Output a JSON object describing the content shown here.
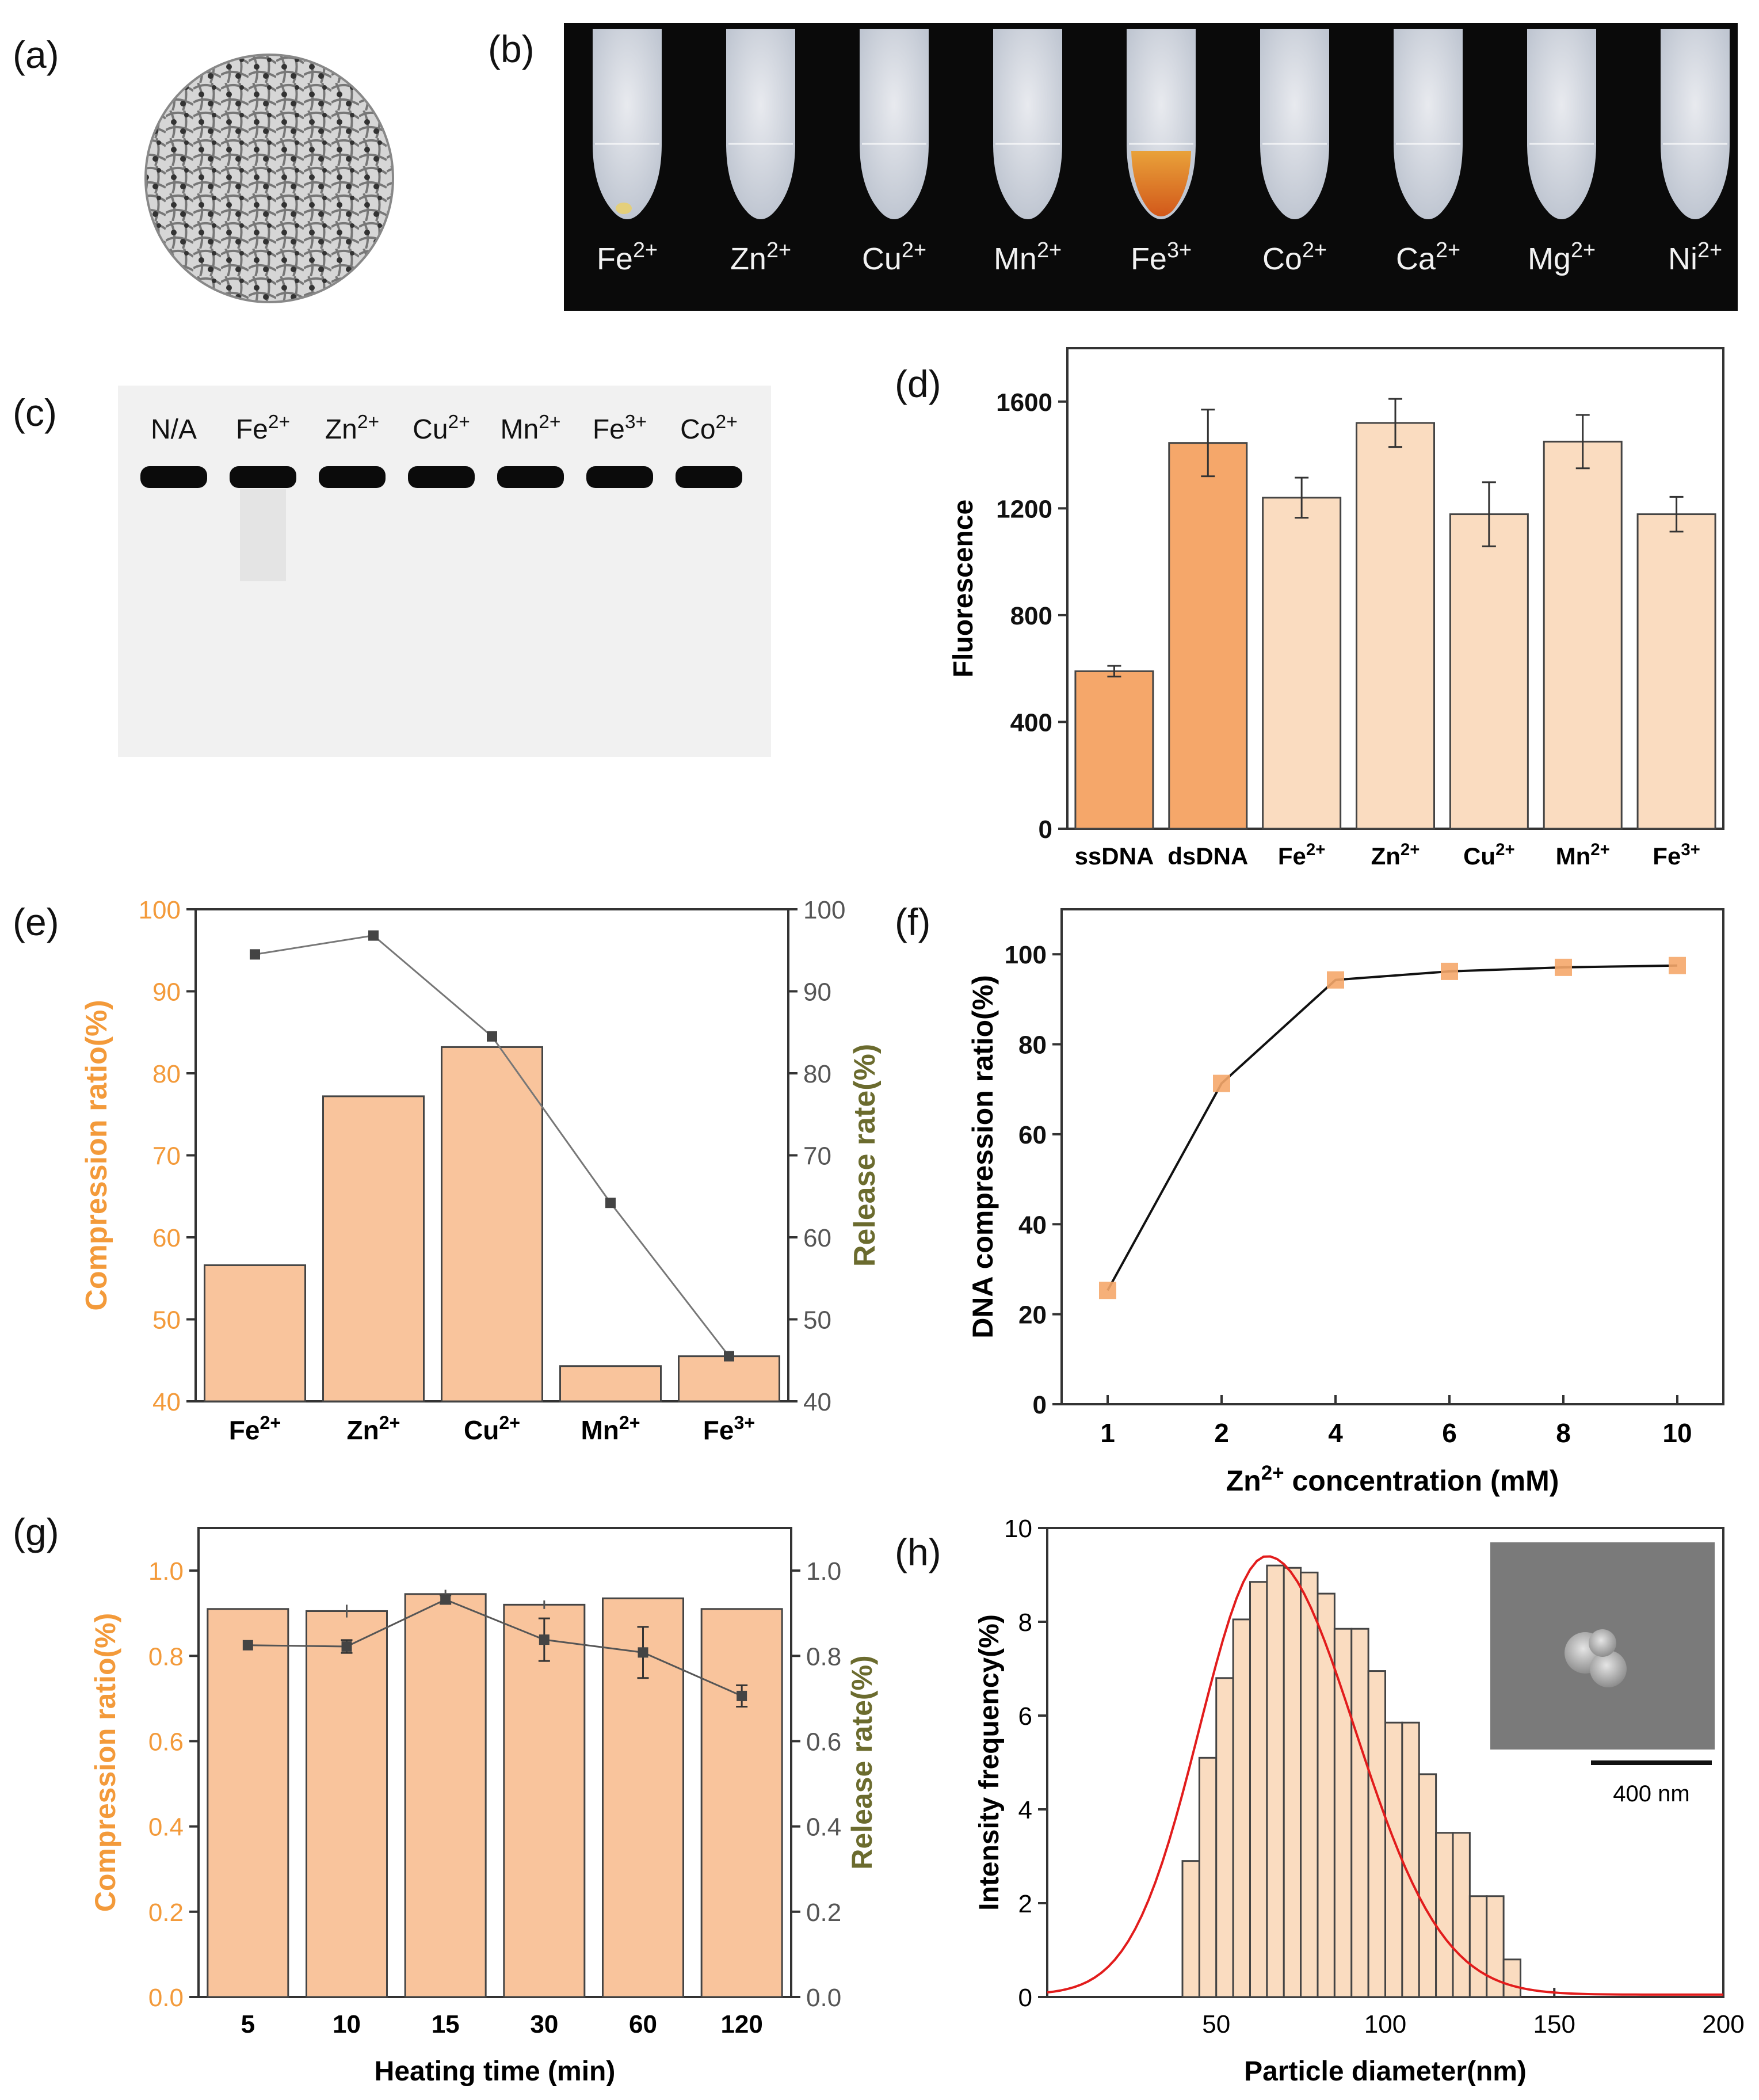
{
  "panel_labels": [
    "(a)",
    "(b)",
    "(c)",
    "(d)",
    "(e)",
    "(f)",
    "(g)",
    "(h)"
  ],
  "colors": {
    "bar_dark": "#F5A76A",
    "bar_light": "#FADCC0",
    "bar_mid": "#F9C49C",
    "axis": "#333333",
    "orange_label": "#F39A3A",
    "olive_label": "#6B6B2E",
    "fit_line": "#E21C1C"
  },
  "photo_b": {
    "labels": [
      "Fe2+",
      "Zn2+",
      "Cu2+",
      "Mn2+",
      "Fe3+",
      "Co2+",
      "Ca2+",
      "Mg2+",
      "Ni2+"
    ]
  },
  "gel_c": {
    "labels": [
      "N/A",
      "Fe2+",
      "Zn2+",
      "Cu2+",
      "Mn2+",
      "Fe3+",
      "Co2+"
    ]
  },
  "sem_inset": {
    "scale_label": "400 nm"
  },
  "chart_data": [
    {
      "panel": "d",
      "type": "bar",
      "categories": [
        "ssDNA",
        "dsDNA",
        "Fe2+",
        "Zn2+",
        "Cu2+",
        "Mn2+",
        "Fe3+"
      ],
      "values": [
        590,
        1445,
        1240,
        1520,
        1178,
        1450,
        1178
      ],
      "errors": [
        20,
        125,
        75,
        90,
        120,
        100,
        65
      ],
      "ylabel": "Fluorescence",
      "ylim": [
        0,
        1800
      ],
      "yticks": [
        0,
        400,
        800,
        1200,
        1600
      ]
    },
    {
      "panel": "e",
      "type": "bar",
      "categories": [
        "Fe2+",
        "Zn2+",
        "Cu2+",
        "Mn2+",
        "Fe3+"
      ],
      "series": [
        {
          "name": "Compression ratio(%)",
          "kind": "bar",
          "values": [
            56.6,
            77.2,
            83.2,
            44.3,
            45.5
          ]
        },
        {
          "name": "Release rate(%)",
          "kind": "line",
          "values": [
            94.5,
            96.8,
            84.5,
            64.2,
            45.5
          ]
        }
      ],
      "ylabel": "Compression ratio(%)",
      "y2label": "Release rate(%)",
      "ylim": [
        40,
        100
      ],
      "yticks": [
        40,
        50,
        60,
        70,
        80,
        90,
        100
      ]
    },
    {
      "panel": "f",
      "type": "line",
      "x": [
        "1",
        "2",
        "4",
        "6",
        "8",
        "10"
      ],
      "values": [
        25.3,
        71.3,
        94.3,
        96.2,
        97.1,
        97.5
      ],
      "xlabel": "Zn2+  concentration (mM)",
      "ylabel": "DNA compression ratio(%)",
      "ylim": [
        0,
        110
      ],
      "yticks": [
        0,
        20,
        40,
        60,
        80,
        100
      ]
    },
    {
      "panel": "g",
      "type": "bar",
      "categories": [
        "5",
        "10",
        "15",
        "30",
        "60",
        "120"
      ],
      "series": [
        {
          "name": "Compression ratio(%)",
          "kind": "bar",
          "values": [
            0.91,
            0.905,
            0.945,
            0.92,
            0.935,
            0.91
          ],
          "errors": [
            0,
            0.015,
            0.01,
            0.01,
            0,
            0
          ]
        },
        {
          "name": "Release rate(%)",
          "kind": "line",
          "values": [
            0.825,
            0.822,
            0.932,
            0.838,
            0.808,
            0.706
          ],
          "errors": [
            0,
            0.015,
            0.01,
            0.05,
            0.06,
            0.025
          ]
        }
      ],
      "xlabel": "Heating time (min)",
      "ylabel": "Compression ratio(%)",
      "y2label": "Release rate(%)",
      "ylim": [
        0,
        1.1
      ],
      "yticks": [
        "0.0",
        "0.2",
        "0.4",
        "0.6",
        "0.8",
        "1.0"
      ]
    },
    {
      "panel": "h",
      "type": "bar",
      "bins_center": [
        42.5,
        47.5,
        52.5,
        57.5,
        62.5,
        67.5,
        72.5,
        77.5,
        82.5,
        87.5,
        92.5,
        97.5,
        102.5,
        107.5,
        112.5,
        117.5,
        122.5,
        127.5,
        132.5,
        137.5
      ],
      "values": [
        2.9,
        5.1,
        6.8,
        8.05,
        8.85,
        9.2,
        9.15,
        9.05,
        8.6,
        7.85,
        7.85,
        6.95,
        5.85,
        5.85,
        4.75,
        3.5,
        3.5,
        2.15,
        2.15,
        0.8
      ],
      "fit": {
        "kind": "gaussian-like",
        "peak_x": 65,
        "peak_y": 9.35
      },
      "xlabel": "Particle diameter(nm)",
      "ylabel": "Intensity frequency(%)",
      "xlim": [
        0,
        200
      ],
      "ylim": [
        0,
        10
      ],
      "xticks": [
        50,
        100,
        150,
        200
      ],
      "yticks": [
        0,
        2,
        4,
        6,
        8,
        10
      ]
    }
  ]
}
